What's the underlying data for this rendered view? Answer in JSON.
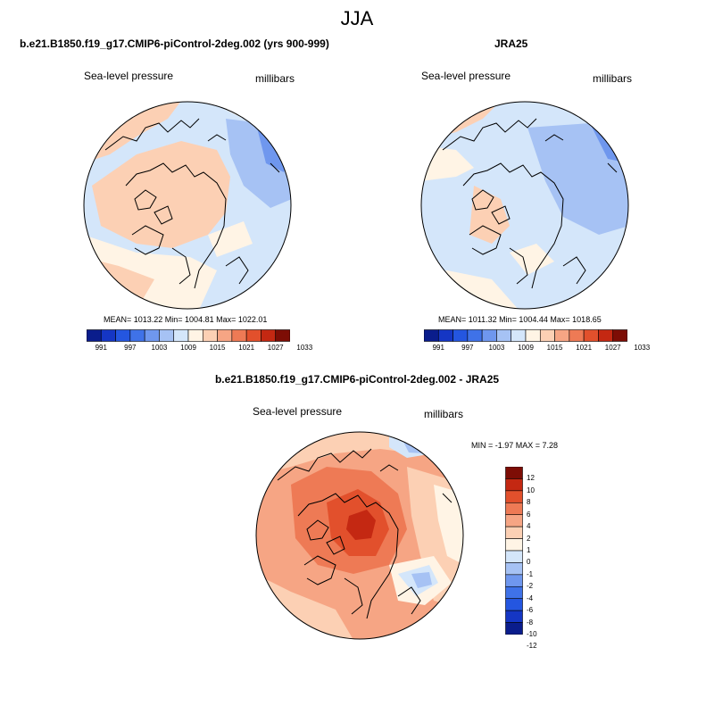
{
  "season_title": "JJA",
  "panels": [
    {
      "id": "model",
      "title": "b.e21.B1850.f19_g17.CMIP6-piControl-2deg.002 (yrs 900-999)",
      "variable": "Sea-level pressure",
      "units": "millibars",
      "stats": "MEAN= 1013.22  Min= 1004.81  Max= 1022.01",
      "colorbar": {
        "colors": [
          "#0a1d8c",
          "#1536c4",
          "#2456e0",
          "#3f72e8",
          "#6f97ee",
          "#a6c2f4",
          "#d4e6fa",
          "#fff4e5",
          "#fcd0b4",
          "#f6a584",
          "#ee7a55",
          "#e2502c",
          "#c42812",
          "#7d0d05"
        ],
        "ticks": [
          "991",
          "997",
          "1003",
          "1009",
          "1015",
          "1021",
          "1027",
          "1033"
        ]
      }
    },
    {
      "id": "obs",
      "title": "JRA25",
      "variable": "Sea-level pressure",
      "units": "millibars",
      "stats": "MEAN= 1011.32  Min= 1004.44  Max= 1018.65",
      "colorbar": {
        "colors": [
          "#0a1d8c",
          "#1536c4",
          "#2456e0",
          "#3f72e8",
          "#6f97ee",
          "#a6c2f4",
          "#d4e6fa",
          "#fff4e5",
          "#fcd0b4",
          "#f6a584",
          "#ee7a55",
          "#e2502c",
          "#c42812",
          "#7d0d05"
        ],
        "ticks": [
          "991",
          "997",
          "1003",
          "1009",
          "1015",
          "1021",
          "1027",
          "1033"
        ]
      }
    },
    {
      "id": "diff",
      "title": "b.e21.B1850.f19_g17.CMIP6-piControl-2deg.002 - JRA25",
      "variable": "Sea-level pressure",
      "units": "millibars",
      "stats": "MIN =  -1.97 MAX =   7.28",
      "colorbar": {
        "colors": [
          "#7d0d05",
          "#c42812",
          "#e2502c",
          "#ee7a55",
          "#f6a584",
          "#fcd0b4",
          "#fff4e5",
          "#d4e6fa",
          "#a6c2f4",
          "#6f97ee",
          "#3f72e8",
          "#2456e0",
          "#1536c4",
          "#0a1d8c"
        ],
        "ticks": [
          "12",
          "10",
          "8",
          "6",
          "4",
          "2",
          "1",
          "0",
          "-1",
          "-2",
          "-4",
          "-6",
          "-8",
          "-10",
          "-12"
        ]
      }
    }
  ]
}
